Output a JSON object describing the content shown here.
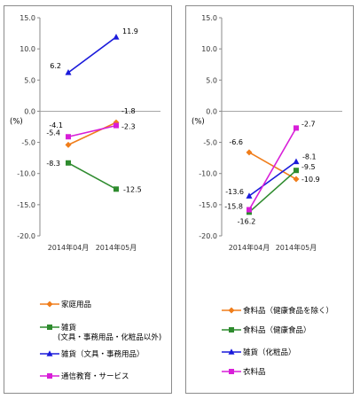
{
  "chart_data": [
    {
      "type": "line",
      "unit_label": "(%)",
      "x": [
        "2014年04月",
        "2014年05月"
      ],
      "ylim": [
        -20.0,
        15.0
      ],
      "yticks": [
        "15.0",
        "10.0",
        "5.0",
        "0.0",
        "-5.0",
        "-10.0",
        "-15.0",
        "-20.0"
      ],
      "grid": false,
      "legend_position": "bottom",
      "series": [
        {
          "name": "家庭用品",
          "color": "#f07d1a",
          "marker": "diamond",
          "values": [
            -5.4,
            -1.8
          ]
        },
        {
          "name": "雑貨\n(文具・事務用品・化粧品以外)",
          "color": "#2e8b2e",
          "marker": "square",
          "values": [
            -8.3,
            -12.5
          ]
        },
        {
          "name": "雑貨（文具・事務用品）",
          "color": "#1a1adb",
          "marker": "triangle",
          "values": [
            6.2,
            11.9
          ]
        },
        {
          "name": "通信教育・サービス",
          "color": "#d81ed8",
          "marker": "square",
          "values": [
            -4.1,
            -2.3
          ]
        }
      ]
    },
    {
      "type": "line",
      "unit_label": "(%)",
      "x": [
        "2014年04月",
        "2014年05月"
      ],
      "ylim": [
        -20.0,
        15.0
      ],
      "yticks": [
        "15.0",
        "10.0",
        "5.0",
        "0.0",
        "-5.0",
        "-10.0",
        "-15.0",
        "-20.0"
      ],
      "grid": false,
      "legend_position": "bottom",
      "series": [
        {
          "name": "食料品（健康食品を除く）",
          "color": "#f07d1a",
          "marker": "diamond",
          "values": [
            -6.6,
            -10.9
          ]
        },
        {
          "name": "食料品（健康食品）",
          "color": "#2e8b2e",
          "marker": "square",
          "values": [
            -16.2,
            -9.5
          ]
        },
        {
          "name": "雑貨（化粧品）",
          "color": "#1a1adb",
          "marker": "triangle",
          "values": [
            -13.6,
            -8.1
          ]
        },
        {
          "name": "衣料品",
          "color": "#d81ed8",
          "marker": "square",
          "values": [
            -15.8,
            -2.7
          ]
        }
      ]
    }
  ]
}
